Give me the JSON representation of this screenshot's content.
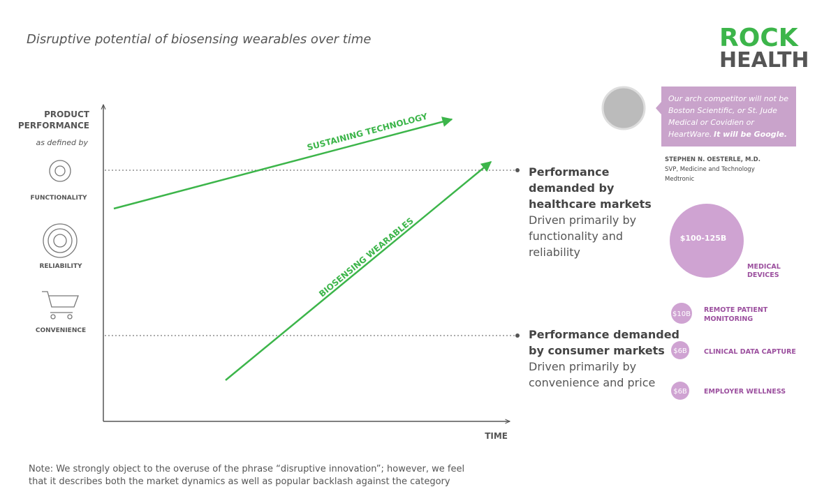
{
  "header": {
    "title": "Disruptive potential of biosensing wearables over time"
  },
  "logo": {
    "line1": "ROCK",
    "line2": "HEALTH"
  },
  "axes": {
    "y_label": [
      "PRODUCT",
      "PERFORMANCE"
    ],
    "y_sublabel": "as defined by",
    "x_label": "TIME"
  },
  "dimensions": [
    "FUNCTIONALITY",
    "RELIABILITY",
    "CONVENIENCE"
  ],
  "trends": {
    "sustaining": "SUSTAINING TECHNOLOGY",
    "biosensing": "BIOSENSING WEARABLES"
  },
  "thresholds": {
    "healthcare": {
      "heading": [
        "Performance",
        "demanded by",
        "healthcare markets"
      ],
      "body": [
        "Driven primarily by",
        "functionality and",
        "reliability"
      ]
    },
    "consumer": {
      "heading": [
        "Performance demanded",
        "by consumer markets"
      ],
      "body": [
        "Driven primarily by",
        "convenience and price"
      ]
    }
  },
  "quote": {
    "lines": [
      "Our arch competitor will not be",
      "Boston Scientific, or St. Jude",
      "Medical or Covidien or",
      "HeartWare."
    ],
    "emphasis": "It will be Google.",
    "author": "STEPHEN N. OESTERLE, M.D.",
    "role": "SVP, Medicine and Technology",
    "company": "Medtronic"
  },
  "markets": [
    {
      "size": "$100-125B",
      "label": [
        "MEDICAL",
        "DEVICES"
      ]
    },
    {
      "size": "$10B",
      "label": [
        "REMOTE PATIENT",
        "MONITORING"
      ]
    },
    {
      "size": "$6B",
      "label": [
        "CLINICAL DATA CAPTURE"
      ]
    },
    {
      "size": "$6B",
      "label": [
        "EMPLOYER WELLNESS"
      ]
    }
  ],
  "note": [
    "Note: We strongly object to the overuse of the phrase “disruptive innovation”; however, we feel",
    "that it describes both the market dynamics as well as popular backlash against the category"
  ]
}
